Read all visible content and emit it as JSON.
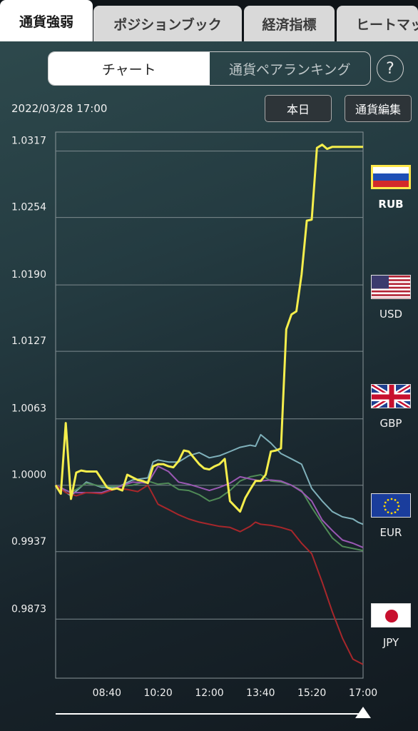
{
  "tabs": [
    {
      "label": "通貨強弱",
      "active": true
    },
    {
      "label": "ポジションブック",
      "active": false
    },
    {
      "label": "経済指標",
      "active": false
    },
    {
      "label": "ヒートマップ",
      "active": false
    }
  ],
  "segment": {
    "chart": "チャート",
    "ranking": "通貨ペアランキング",
    "active": "chart"
  },
  "help_label": "?",
  "timestamp": "2022/03/28 17:00",
  "buttons": {
    "today": "本日",
    "edit": "通貨編集"
  },
  "chart_data": {
    "type": "line",
    "y_ticks": [
      "1.0317",
      "1.0254",
      "1.0190",
      "1.0127",
      "1.0063",
      "1.0000",
      "0.9937",
      "0.9873"
    ],
    "ylim": [
      0.9817,
      1.0335
    ],
    "x_ticks": [
      "08:40",
      "10:20",
      "12:00",
      "13:40",
      "15:20",
      "17:00"
    ],
    "x_tick_positions": [
      8.667,
      10.333,
      12.0,
      13.667,
      15.333,
      17.0
    ],
    "xlim": [
      7.0,
      17.0
    ],
    "grid": true,
    "legend": "right",
    "series": [
      {
        "name": "RUB",
        "color": "#f5ee4c",
        "width": 3,
        "x": [
          7.0,
          7.17,
          7.33,
          7.5,
          7.67,
          7.83,
          8.0,
          8.33,
          8.67,
          8.83,
          9.0,
          9.17,
          9.33,
          9.67,
          9.83,
          10.0,
          10.17,
          10.33,
          10.5,
          10.67,
          10.83,
          11.0,
          11.17,
          11.33,
          11.67,
          11.83,
          12.0,
          12.17,
          12.33,
          12.5,
          12.67,
          13.0,
          13.17,
          13.33,
          13.5,
          13.67,
          13.83,
          14.0,
          14.17,
          14.33,
          14.5,
          14.67,
          14.83,
          15.0,
          15.17,
          15.33,
          15.5,
          15.67,
          15.83,
          16.0,
          16.17,
          16.33,
          16.5,
          16.67,
          16.83,
          17.0
        ],
        "y": [
          1.0,
          0.9992,
          1.0059,
          0.9987,
          1.0012,
          1.0014,
          1.0013,
          1.0013,
          0.9998,
          0.9996,
          0.9997,
          0.9995,
          1.001,
          1.0005,
          1.0004,
          1.0002,
          1.0018,
          1.002,
          1.002,
          1.0018,
          1.0017,
          1.0023,
          1.0033,
          1.0032,
          1.002,
          1.0016,
          1.0015,
          1.0018,
          1.002,
          1.0025,
          0.9985,
          0.9975,
          0.9988,
          0.9996,
          1.0004,
          1.0004,
          1.001,
          1.0032,
          1.0033,
          1.0035,
          1.0148,
          1.0162,
          1.0165,
          1.02,
          1.0251,
          1.0252,
          1.032,
          1.0323,
          1.0319,
          1.0321,
          1.0321,
          1.0321,
          1.0321,
          1.0321,
          1.0321,
          1.0321
        ]
      },
      {
        "name": "USD",
        "color": "#7fb0ba",
        "width": 2,
        "x": [
          7.0,
          7.5,
          8.0,
          8.5,
          9.0,
          9.5,
          10.0,
          10.17,
          10.33,
          10.67,
          11.0,
          11.33,
          11.67,
          12.0,
          12.33,
          12.67,
          13.0,
          13.33,
          13.5,
          13.67,
          14.0,
          14.33,
          14.67,
          15.0,
          15.33,
          15.67,
          16.0,
          16.33,
          16.67,
          16.83,
          17.0
        ],
        "y": [
          1.0,
          0.999,
          1.0003,
          0.9998,
          0.9998,
          1.0005,
          1.0007,
          1.0022,
          1.0024,
          1.0022,
          1.0022,
          1.0028,
          1.0031,
          1.0026,
          1.0028,
          1.0032,
          1.0036,
          1.0038,
          1.0037,
          1.0048,
          1.004,
          1.003,
          1.0025,
          1.002,
          0.9997,
          0.9985,
          0.9975,
          0.997,
          0.9968,
          0.9965,
          0.9963
        ]
      },
      {
        "name": "GBP",
        "color": "#4f8a56",
        "width": 2,
        "x": [
          7.0,
          7.5,
          8.0,
          8.5,
          9.0,
          9.5,
          10.0,
          10.33,
          10.67,
          11.0,
          11.33,
          11.67,
          12.0,
          12.33,
          12.67,
          13.0,
          13.33,
          13.67,
          14.0,
          14.33,
          14.67,
          15.0,
          15.33,
          15.67,
          16.0,
          16.33,
          16.67,
          17.0
        ],
        "y": [
          1.0,
          0.9993,
          1.0002,
          0.9999,
          0.9999,
          1.0,
          1.0004,
          1.0001,
          1.0002,
          0.9996,
          0.9995,
          0.9991,
          0.9985,
          0.9988,
          0.9995,
          1.0004,
          1.0008,
          1.001,
          1.0004,
          1.0003,
          1.0,
          0.9995,
          0.9979,
          0.9964,
          0.995,
          0.9942,
          0.994,
          0.9938
        ]
      },
      {
        "name": "EUR",
        "color": "#9a58b3",
        "width": 2,
        "x": [
          7.0,
          7.5,
          8.0,
          8.5,
          9.0,
          9.5,
          10.0,
          10.33,
          10.67,
          11.0,
          11.33,
          11.67,
          12.0,
          12.33,
          12.67,
          13.0,
          13.33,
          13.67,
          14.0,
          14.33,
          14.67,
          15.0,
          15.33,
          15.67,
          16.0,
          16.33,
          16.67,
          17.0
        ],
        "y": [
          1.0,
          0.9993,
          0.9993,
          0.9993,
          0.9998,
          1.0003,
          1.0002,
          1.0018,
          1.0013,
          1.0003,
          1.0001,
          0.9998,
          0.9995,
          0.9998,
          1.0002,
          1.0008,
          1.0006,
          1.0004,
          1.0005,
          1.0004,
          1.0,
          0.9994,
          0.9985,
          0.9967,
          0.9957,
          0.9948,
          0.9945,
          0.9941
        ]
      },
      {
        "name": "JPY",
        "color": "#a7272b",
        "width": 2,
        "x": [
          7.0,
          7.33,
          7.67,
          8.0,
          8.5,
          9.0,
          9.33,
          9.67,
          10.0,
          10.33,
          10.67,
          11.0,
          11.33,
          11.67,
          12.0,
          12.33,
          12.67,
          13.0,
          13.33,
          13.5,
          13.67,
          14.0,
          14.33,
          14.67,
          15.0,
          15.33,
          15.67,
          16.0,
          16.33,
          16.67,
          17.0
        ],
        "y": [
          1.0,
          0.9993,
          0.999,
          0.9993,
          0.9992,
          0.9997,
          0.9996,
          0.9994,
          1.0,
          0.9982,
          0.9977,
          0.9972,
          0.9968,
          0.9965,
          0.9963,
          0.9961,
          0.996,
          0.9956,
          0.9961,
          0.9965,
          0.9963,
          0.9962,
          0.996,
          0.9957,
          0.9945,
          0.9935,
          0.9908,
          0.988,
          0.9855,
          0.9835,
          0.983
        ]
      }
    ]
  },
  "legend": [
    {
      "code": "RUB",
      "flag": "russia-flag-icon",
      "selected": true
    },
    {
      "code": "USD",
      "flag": "usa-flag-icon",
      "selected": false
    },
    {
      "code": "GBP",
      "flag": "uk-flag-icon",
      "selected": false
    },
    {
      "code": "EUR",
      "flag": "eu-flag-icon",
      "selected": false
    },
    {
      "code": "JPY",
      "flag": "japan-flag-icon",
      "selected": false
    }
  ],
  "slider": {
    "value": 1.0
  }
}
